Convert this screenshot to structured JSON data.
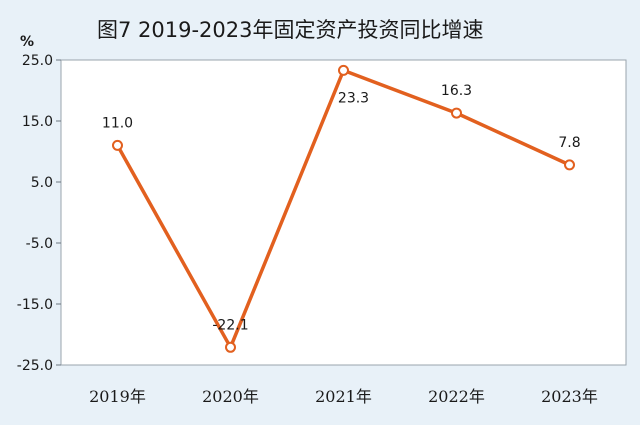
{
  "chart_data": {
    "type": "line",
    "title": "图7   2019-2023年固定资产投资同比增速",
    "unit": "%",
    "categories": [
      "2019年",
      "2020年",
      "2021年",
      "2022年",
      "2023年"
    ],
    "series": [
      {
        "values": [
          11.0,
          -22.1,
          23.3,
          16.3,
          7.8
        ]
      }
    ],
    "data_labels": [
      "11.0",
      "-22.1",
      "23.3",
      "16.3",
      "7.8"
    ],
    "yticks": [
      "25.0",
      "15.0",
      "5.0",
      "-5.0",
      "-15.0",
      "-25.0"
    ],
    "ylim": [
      -25,
      25
    ],
    "grid": false,
    "colors": {
      "line": "#e2601f",
      "marker_fill": "#ffffff",
      "background": "#e8f1f8",
      "plot_bg": "#ffffff"
    }
  }
}
